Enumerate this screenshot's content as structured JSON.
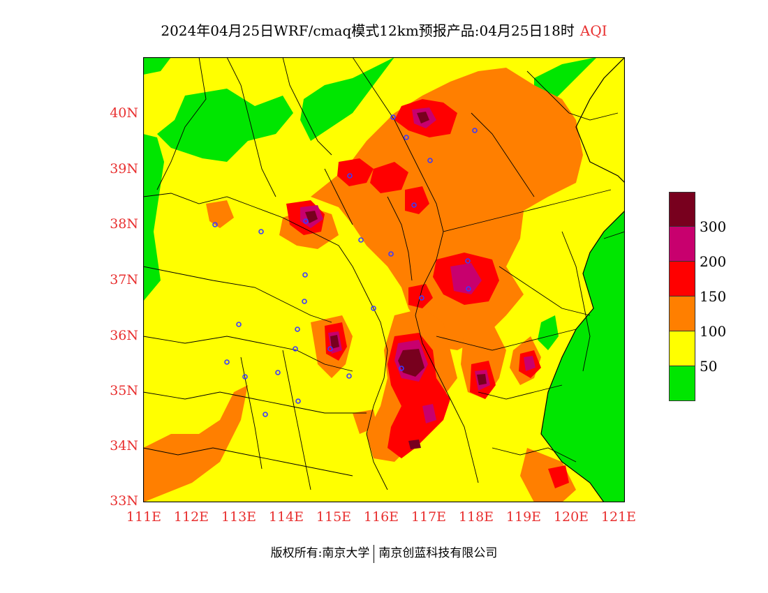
{
  "title": {
    "main": "2024年04月25日WRF/cmaq模式12km预报产品:04月25日18时",
    "variable": "AQI"
  },
  "axes": {
    "y_ticks": [
      "40N",
      "39N",
      "38N",
      "37N",
      "36N",
      "35N",
      "34N",
      "33N"
    ],
    "x_ticks": [
      "111E",
      "112E",
      "113E",
      "114E",
      "115E",
      "116E",
      "117E",
      "118E",
      "119E",
      "120E",
      "121E"
    ]
  },
  "legend": {
    "colors": [
      "#78001e",
      "#c8006e",
      "#ff0000",
      "#ff7f00",
      "#ffff00",
      "#00e600"
    ],
    "labels": [
      "300",
      "200",
      "150",
      "100",
      "50"
    ]
  },
  "footer": {
    "left": "版权所有:南京大学",
    "right": "南京创蓝科技有限公司"
  }
}
